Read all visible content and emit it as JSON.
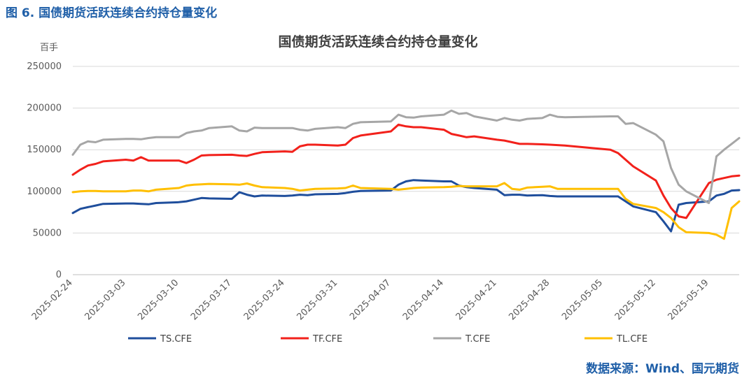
{
  "figure_caption": "图 6. 国债期货活跃连续合约持仓量变化",
  "source": "数据来源：Wind、国元期货",
  "chart_data": {
    "type": "line",
    "title": "国债期货活跃连续合约持仓量变化",
    "ylabel": "百手",
    "ylim": [
      0,
      250000
    ],
    "yticks": [
      0,
      50000,
      100000,
      150000,
      200000,
      250000
    ],
    "ytick_labels": [
      "0",
      "50000",
      "100000",
      "150000",
      "200000",
      "250000"
    ],
    "xtick_labels": [
      "2025-02-24",
      "2025-03-03",
      "2025-03-10",
      "2025-03-17",
      "2025-03-24",
      "2025-03-31",
      "2025-04-07",
      "2025-04-14",
      "2025-04-21",
      "2025-04-28",
      "2025-05-05",
      "2025-05-12",
      "2025-05-19"
    ],
    "x": [
      "2025-02-24",
      "2025-02-25",
      "2025-02-26",
      "2025-02-27",
      "2025-02-28",
      "2025-03-03",
      "2025-03-04",
      "2025-03-05",
      "2025-03-06",
      "2025-03-07",
      "2025-03-10",
      "2025-03-11",
      "2025-03-12",
      "2025-03-13",
      "2025-03-14",
      "2025-03-17",
      "2025-03-18",
      "2025-03-19",
      "2025-03-20",
      "2025-03-21",
      "2025-03-24",
      "2025-03-25",
      "2025-03-26",
      "2025-03-27",
      "2025-03-28",
      "2025-03-31",
      "2025-04-01",
      "2025-04-02",
      "2025-04-03",
      "2025-04-07",
      "2025-04-08",
      "2025-04-09",
      "2025-04-10",
      "2025-04-11",
      "2025-04-14",
      "2025-04-15",
      "2025-04-16",
      "2025-04-17",
      "2025-04-18",
      "2025-04-21",
      "2025-04-22",
      "2025-04-23",
      "2025-04-24",
      "2025-04-25",
      "2025-04-27",
      "2025-04-28",
      "2025-04-29",
      "2025-04-30",
      "2025-05-06",
      "2025-05-07",
      "2025-05-08",
      "2025-05-09",
      "2025-05-12",
      "2025-05-13",
      "2025-05-14",
      "2025-05-15",
      "2025-05-16",
      "2025-05-19",
      "2025-05-20",
      "2025-05-21",
      "2025-05-22",
      "2025-05-23"
    ],
    "series": [
      {
        "name": "TS.CFE",
        "color": "#1f4e9c",
        "values": [
          74000,
          79000,
          81000,
          83000,
          85000,
          85500,
          85500,
          85000,
          84500,
          86000,
          87000,
          88000,
          90000,
          92000,
          91500,
          91000,
          99000,
          96000,
          94000,
          95000,
          94500,
          95000,
          96000,
          95500,
          96500,
          97000,
          98000,
          99500,
          100500,
          101000,
          108000,
          112000,
          113500,
          113000,
          112000,
          112000,
          107000,
          105000,
          104000,
          102000,
          95500,
          96000,
          96000,
          95000,
          95500,
          94500,
          94000,
          94000,
          94000,
          94000,
          88000,
          82000,
          75000,
          64000,
          52000,
          84000,
          86000,
          88000,
          95000,
          97000,
          101000,
          101500
        ]
      },
      {
        "name": "TF.CFE",
        "color": "#f2211b",
        "values": [
          120000,
          126000,
          131000,
          133000,
          136000,
          138000,
          137000,
          141000,
          137000,
          137000,
          137000,
          134000,
          138000,
          143000,
          143500,
          144000,
          143000,
          142500,
          145000,
          147000,
          148000,
          147500,
          154000,
          156000,
          156000,
          155000,
          156000,
          164000,
          167000,
          172000,
          180000,
          178000,
          177000,
          177000,
          174000,
          169000,
          167000,
          165000,
          166000,
          162000,
          161000,
          159000,
          157000,
          157000,
          156500,
          156000,
          155500,
          155000,
          150000,
          146000,
          138000,
          130000,
          113000,
          95000,
          80000,
          70000,
          68000,
          110000,
          114000,
          116000,
          118000,
          119000
        ]
      },
      {
        "name": "T.CFE",
        "color": "#a6a6a6",
        "values": [
          144000,
          156000,
          160000,
          159000,
          162000,
          163000,
          163000,
          162500,
          164000,
          165000,
          165000,
          170000,
          172000,
          173000,
          176000,
          178000,
          173000,
          172000,
          176500,
          176000,
          176000,
          176000,
          174000,
          173000,
          175000,
          177000,
          176000,
          181000,
          183000,
          184000,
          192000,
          189000,
          188500,
          190000,
          192000,
          197000,
          193000,
          194000,
          190000,
          185000,
          188000,
          186000,
          185000,
          187000,
          188000,
          192000,
          189500,
          189000,
          190000,
          190000,
          181000,
          182000,
          168000,
          160000,
          128000,
          108000,
          100000,
          86000,
          142000,
          150000,
          157000,
          164000
        ]
      },
      {
        "name": "TL.CFE",
        "color": "#ffbf00",
        "values": [
          99000,
          100000,
          100500,
          100500,
          100000,
          100000,
          101000,
          101000,
          100000,
          102000,
          104000,
          107000,
          108000,
          108500,
          109000,
          108500,
          108000,
          109500,
          107000,
          105000,
          104000,
          103000,
          101000,
          102000,
          103000,
          103500,
          104000,
          107000,
          104000,
          103000,
          102000,
          103000,
          104000,
          104500,
          105000,
          105500,
          106500,
          106000,
          106000,
          106000,
          110000,
          103000,
          102000,
          104500,
          105500,
          106000,
          103000,
          103000,
          103000,
          103000,
          91000,
          85000,
          80000,
          75000,
          68000,
          57000,
          51000,
          50000,
          48000,
          43000,
          80000,
          88000
        ]
      }
    ]
  }
}
